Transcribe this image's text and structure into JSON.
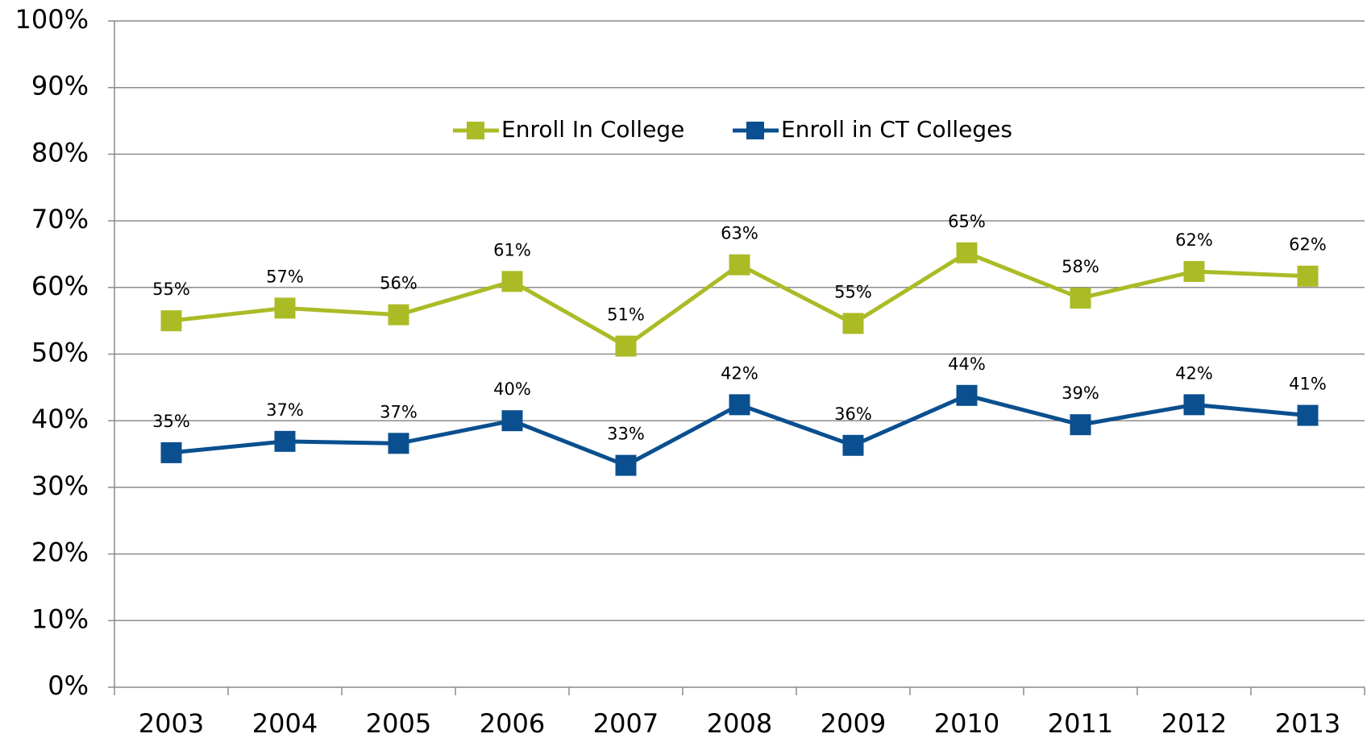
{
  "chart_data": {
    "type": "line",
    "categories": [
      "2003",
      "2004",
      "2005",
      "2006",
      "2007",
      "2008",
      "2009",
      "2010",
      "2011",
      "2012",
      "2013"
    ],
    "series": [
      {
        "name": "Enroll In College",
        "color": "#abbb26",
        "values": [
          55.0,
          56.9,
          55.9,
          60.9,
          51.2,
          63.4,
          54.6,
          65.2,
          58.4,
          62.4,
          61.7
        ],
        "value_labels": [
          "55%",
          "57%",
          "56%",
          "61%",
          "51%",
          "63%",
          "55%",
          "65%",
          "58%",
          "62%",
          "62%"
        ]
      },
      {
        "name": "Enroll in CT Colleges",
        "color": "#0a4f8f",
        "values": [
          35.2,
          36.9,
          36.6,
          40.0,
          33.3,
          42.4,
          36.3,
          43.8,
          39.4,
          42.4,
          40.8
        ],
        "value_labels": [
          "35%",
          "37%",
          "37%",
          "40%",
          "33%",
          "42%",
          "36%",
          "44%",
          "39%",
          "42%",
          "41%"
        ]
      }
    ],
    "ylim": [
      0,
      100
    ],
    "yticks": [
      {
        "value": 0,
        "label": "0%"
      },
      {
        "value": 10,
        "label": "10%"
      },
      {
        "value": 20,
        "label": "20%"
      },
      {
        "value": 30,
        "label": "30%"
      },
      {
        "value": 40,
        "label": "40%"
      },
      {
        "value": 50,
        "label": "50%"
      },
      {
        "value": 60,
        "label": "60%"
      },
      {
        "value": 70,
        "label": "70%"
      },
      {
        "value": 80,
        "label": "80%"
      },
      {
        "value": 90,
        "label": "90%"
      },
      {
        "value": 100,
        "label": "100%"
      }
    ],
    "grid": true
  }
}
